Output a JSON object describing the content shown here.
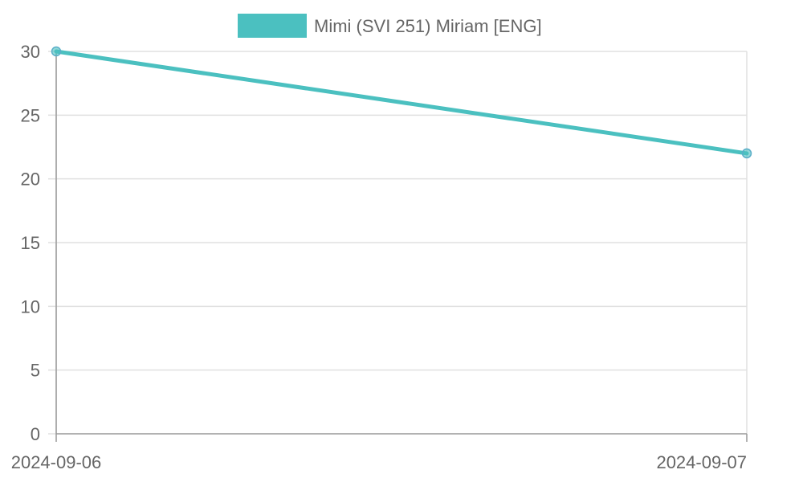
{
  "chart_data": {
    "type": "line",
    "title": "",
    "xlabel": "",
    "ylabel": "",
    "categories": [
      "2024-09-06",
      "2024-09-07"
    ],
    "series": [
      {
        "name": "Mimi (SVI 251) Miriam [ENG]",
        "values": [
          30,
          22
        ],
        "color": "#4bc0c0"
      }
    ],
    "y_ticks": [
      "0",
      "5",
      "10",
      "15",
      "20",
      "25",
      "30"
    ],
    "ylim": [
      0,
      30
    ],
    "grid": true,
    "legend": "top-center"
  }
}
